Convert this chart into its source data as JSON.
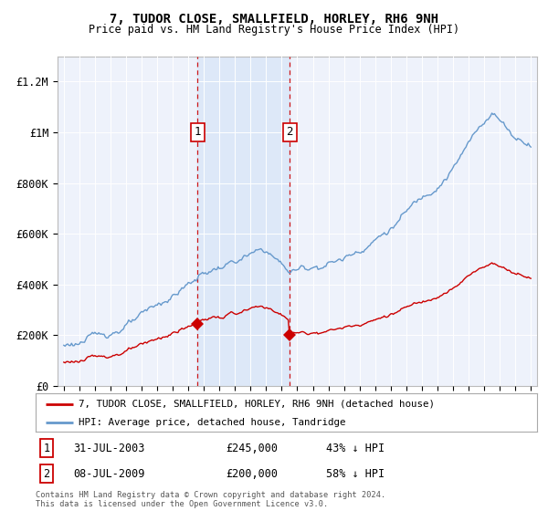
{
  "title": "7, TUDOR CLOSE, SMALLFIELD, HORLEY, RH6 9NH",
  "subtitle": "Price paid vs. HM Land Registry's House Price Index (HPI)",
  "hpi_label": "HPI: Average price, detached house, Tandridge",
  "property_label": "7, TUDOR CLOSE, SMALLFIELD, HORLEY, RH6 9NH (detached house)",
  "transaction1": {
    "label": "1",
    "date": "31-JUL-2003",
    "price": "£245,000",
    "hpi_pct": "43% ↓ HPI"
  },
  "transaction2": {
    "label": "2",
    "date": "08-JUL-2009",
    "price": "£200,000",
    "hpi_pct": "58% ↓ HPI"
  },
  "vline1_year": 2003.58,
  "vline2_year": 2009.52,
  "property_color": "#cc0000",
  "hpi_color": "#6699cc",
  "background_color": "#ffffff",
  "plot_bg_color": "#eef2fb",
  "vline_color": "#cc0000",
  "shade_color": "#dde8f8",
  "footer": "Contains HM Land Registry data © Crown copyright and database right 2024.\nThis data is licensed under the Open Government Licence v3.0.",
  "ylim": [
    0,
    1300000
  ],
  "yticks": [
    0,
    200000,
    400000,
    600000,
    800000,
    1000000,
    1200000
  ],
  "ytick_labels": [
    "£0",
    "£200K",
    "£400K",
    "£600K",
    "£800K",
    "£1M",
    "£1.2M"
  ]
}
